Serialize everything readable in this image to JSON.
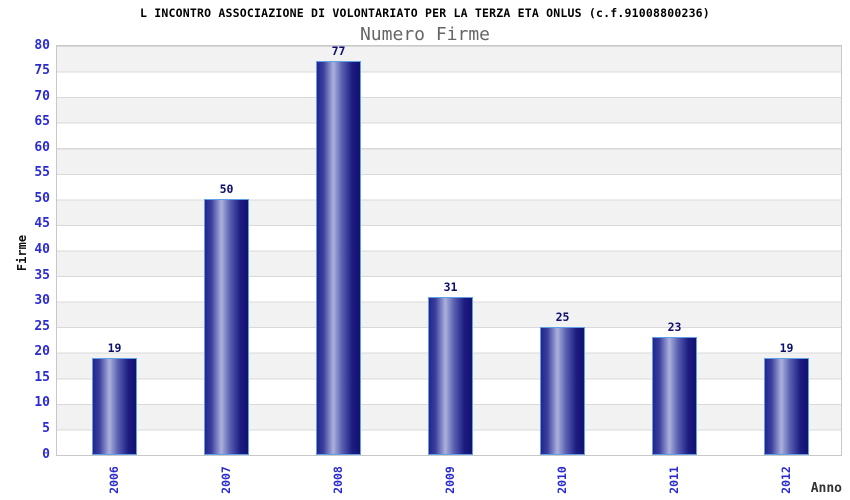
{
  "chart_data": {
    "type": "bar",
    "title": "L INCONTRO ASSOCIAZIONE DI VOLONTARIATO PER LA TERZA ETA ONLUS (c.f.91008800236)",
    "subtitle": "Numero Firme",
    "xlabel": "Anno",
    "ylabel": "Firme",
    "categories": [
      "2006",
      "2007",
      "2008",
      "2009",
      "2010",
      "2011",
      "2012"
    ],
    "values": [
      19,
      50,
      77,
      31,
      25,
      23,
      19
    ],
    "ylim": [
      0,
      80
    ],
    "ytick_step": 5,
    "grid": true,
    "grid_style": "alternating-gray-white-bands-every-5-units",
    "legend": false,
    "bar_value_labels_shown": true
  },
  "colors": {
    "background": "#ffffff",
    "title_text": "#000000",
    "subtitle_text": "#666666",
    "axis_tick_text": "#2b2bd2",
    "bar_value_text": "#0e0e6e",
    "y_axis_label_text": "#111111",
    "x_axis_label_text": "#333333",
    "band_gray": "#f2f2f2",
    "band_white": "#ffffff",
    "gridline": "#d9d9d9",
    "plot_border": "#c8c8c8",
    "bar_gradient_dark": "#24248e",
    "bar_gradient_light": "#aab1dc",
    "bar_gradient_darkest": "#12126e",
    "bar_outline": "#61a0e4"
  }
}
